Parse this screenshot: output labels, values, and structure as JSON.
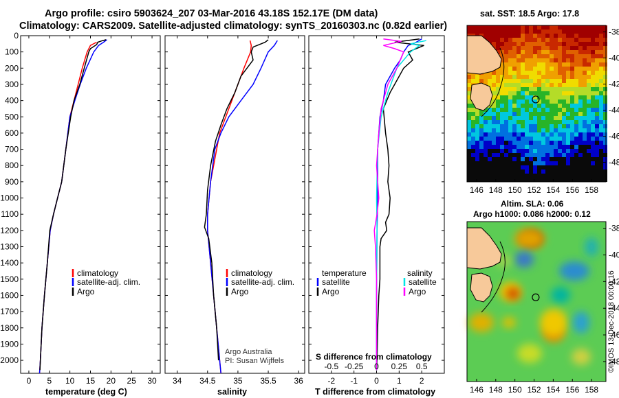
{
  "title": {
    "line1": "Argo profile: csiro 5903624_207 03-Mar-2016 43.18S 152.17E (DM data)",
    "line2": "Climatology: CARS2009. Satellite-adjusted climatology: synTS_20160303.nc (0.82d earlier)"
  },
  "chart_data": [
    {
      "type": "line",
      "panel": "temperature",
      "xlabel": "temperature (deg C)",
      "ylabel": "",
      "xlim": [
        -2,
        32
      ],
      "ylim": [
        2080,
        0
      ],
      "x_ticks": [
        "0",
        "5",
        "10",
        "15",
        "20",
        "25",
        "30"
      ],
      "y_ticks": [
        "0",
        "100",
        "200",
        "300",
        "400",
        "500",
        "600",
        "700",
        "800",
        "900",
        "1000",
        "1100",
        "1200",
        "1300",
        "1400",
        "1500",
        "1600",
        "1700",
        "1800",
        "1900",
        "2000"
      ],
      "legend": [
        "climatology",
        "satellite-adj. clim.",
        "Argo"
      ],
      "series": [
        {
          "name": "climatology",
          "color": "#ff0000",
          "points": [
            [
              16.5,
              40
            ],
            [
              15,
              60
            ],
            [
              14.2,
              100
            ],
            [
              13,
              200
            ],
            [
              12,
              300
            ],
            [
              11,
              400
            ],
            [
              10,
              500
            ],
            [
              9,
              700
            ],
            [
              8,
              900
            ],
            [
              7,
              1000
            ],
            [
              6,
              1100
            ],
            [
              5.2,
              1200
            ],
            [
              4.5,
              1400
            ],
            [
              3.8,
              1600
            ],
            [
              3.2,
              1800
            ],
            [
              2.8,
              2000
            ],
            [
              2.6,
              2080
            ]
          ]
        },
        {
          "name": "satellite-adj. clim.",
          "color": "#0000ff",
          "points": [
            [
              19,
              25
            ],
            [
              18.2,
              40
            ],
            [
              17,
              60
            ],
            [
              15.8,
              100
            ],
            [
              14,
              200
            ],
            [
              12.5,
              300
            ],
            [
              11.2,
              400
            ],
            [
              10,
              500
            ],
            [
              9,
              700
            ],
            [
              8,
              900
            ],
            [
              7,
              1000
            ],
            [
              6,
              1100
            ],
            [
              5.2,
              1200
            ],
            [
              4.5,
              1400
            ],
            [
              3.8,
              1600
            ],
            [
              3.2,
              1800
            ],
            [
              2.8,
              2000
            ],
            [
              2.6,
              2080
            ]
          ]
        },
        {
          "name": "Argo",
          "color": "#000000",
          "points": [
            [
              18.8,
              25
            ],
            [
              18,
              30
            ],
            [
              16.8,
              40
            ],
            [
              16.5,
              55
            ],
            [
              15,
              80
            ],
            [
              14.6,
              100
            ],
            [
              13.5,
              200
            ],
            [
              12.4,
              300
            ],
            [
              11,
              400
            ],
            [
              10.2,
              500
            ],
            [
              9,
              700
            ],
            [
              8,
              900
            ],
            [
              7,
              1000
            ],
            [
              6,
              1100
            ],
            [
              5.1,
              1200
            ],
            [
              4.5,
              1400
            ],
            [
              3.8,
              1600
            ],
            [
              3.2,
              1800
            ],
            [
              2.8,
              2000
            ],
            [
              2.7,
              2060
            ]
          ]
        }
      ]
    },
    {
      "type": "line",
      "panel": "salinity",
      "xlabel": "salinity",
      "ylabel": "",
      "xlim": [
        33.8,
        36.1
      ],
      "ylim": [
        2080,
        0
      ],
      "x_ticks": [
        "34",
        "34.5",
        "35",
        "35.5",
        "36"
      ],
      "legend": [
        "climatology",
        "satellite-adj. clim.",
        "Argo"
      ],
      "credit": [
        "Argo Australia",
        "PI: Susan Wijffels"
      ],
      "series": [
        {
          "name": "climatology",
          "color": "#ff0000",
          "points": [
            [
              35.2,
              30
            ],
            [
              35.22,
              60
            ],
            [
              35.21,
              100
            ],
            [
              35.1,
              200
            ],
            [
              35.0,
              300
            ],
            [
              34.9,
              400
            ],
            [
              34.8,
              500
            ],
            [
              34.7,
              600
            ],
            [
              34.65,
              700
            ],
            [
              34.55,
              900
            ],
            [
              34.5,
              1100
            ],
            [
              34.5,
              1200
            ],
            [
              34.55,
              1400
            ],
            [
              34.6,
              1600
            ],
            [
              34.65,
              1800
            ],
            [
              34.7,
              2000
            ],
            [
              34.72,
              2080
            ]
          ]
        },
        {
          "name": "satellite-adj. clim.",
          "color": "#0000ff",
          "points": [
            [
              35.65,
              30
            ],
            [
              35.6,
              60
            ],
            [
              35.5,
              100
            ],
            [
              35.38,
              200
            ],
            [
              35.25,
              300
            ],
            [
              35.05,
              400
            ],
            [
              34.85,
              500
            ],
            [
              34.72,
              600
            ],
            [
              34.62,
              700
            ],
            [
              34.55,
              900
            ],
            [
              34.5,
              1100
            ],
            [
              34.5,
              1200
            ],
            [
              34.55,
              1400
            ],
            [
              34.6,
              1600
            ],
            [
              34.65,
              1800
            ],
            [
              34.7,
              2000
            ],
            [
              34.72,
              2080
            ]
          ]
        },
        {
          "name": "Argo",
          "color": "#000000",
          "points": [
            [
              35.5,
              25
            ],
            [
              35.45,
              40
            ],
            [
              35.25,
              70
            ],
            [
              35.22,
              100
            ],
            [
              35.25,
              150
            ],
            [
              35.05,
              250
            ],
            [
              34.95,
              350
            ],
            [
              34.82,
              450
            ],
            [
              34.72,
              550
            ],
            [
              34.63,
              650
            ],
            [
              34.55,
              800
            ],
            [
              34.5,
              950
            ],
            [
              34.48,
              1100
            ],
            [
              34.45,
              1180
            ],
            [
              34.52,
              1250
            ],
            [
              34.57,
              1400
            ],
            [
              34.6,
              1600
            ],
            [
              34.65,
              1800
            ],
            [
              34.68,
              2000
            ]
          ]
        }
      ]
    },
    {
      "type": "line",
      "panel": "difference",
      "xlabel": "T difference from climatology",
      "secondary_xlabel": "S difference from climatology",
      "xlim": [
        -3,
        3
      ],
      "ylim": [
        2080,
        0
      ],
      "x_ticks": [
        "-2",
        "-1",
        "0",
        "1",
        "2"
      ],
      "secondary_x_ticks": [
        "-0.5",
        "-0.25",
        "0",
        "0.25",
        "0.5"
      ],
      "legend_temperature_title": "temperature",
      "legend_salinity_title": "salinity",
      "legend_temperature": [
        "satellite",
        "Argo"
      ],
      "legend_salinity": [
        "satellite",
        "Argo"
      ],
      "series": [
        {
          "name": "T satellite",
          "color": "#0000ff",
          "points": [
            [
              2.0,
              20
            ],
            [
              1.7,
              45
            ],
            [
              1.4,
              60
            ],
            [
              1.2,
              100
            ],
            [
              1.05,
              150
            ],
            [
              0.8,
              200
            ],
            [
              0.4,
              300
            ],
            [
              0.3,
              400
            ],
            [
              0.15,
              500
            ],
            [
              0.05,
              700
            ],
            [
              0.05,
              1000
            ],
            [
              0.02,
              1200
            ],
            [
              0.0,
              1600
            ],
            [
              0.0,
              2060
            ]
          ]
        },
        {
          "name": "T Argo",
          "color": "#000000",
          "points": [
            [
              1.9,
              20
            ],
            [
              0.8,
              40
            ],
            [
              2.1,
              60
            ],
            [
              1.4,
              100
            ],
            [
              1.6,
              150
            ],
            [
              1.2,
              200
            ],
            [
              0.8,
              300
            ],
            [
              0.6,
              350
            ],
            [
              0.3,
              450
            ],
            [
              0.4,
              600
            ],
            [
              0.5,
              700
            ],
            [
              0.55,
              800
            ],
            [
              0.5,
              900
            ],
            [
              0.6,
              1000
            ],
            [
              0.55,
              1100
            ],
            [
              0.4,
              1150
            ],
            [
              0.45,
              1200
            ],
            [
              0.2,
              1250
            ],
            [
              0.15,
              1300
            ],
            [
              0.15,
              1500
            ],
            [
              0.1,
              1600
            ],
            [
              0.05,
              1800
            ],
            [
              0.02,
              2000
            ],
            [
              0.0,
              2060
            ]
          ]
        },
        {
          "name": "S satellite",
          "color": "#00e5e5",
          "points": [
            [
              2.2,
              30
            ],
            [
              1.5,
              50
            ],
            [
              1.9,
              60
            ],
            [
              1.5,
              100
            ],
            [
              0.9,
              200
            ],
            [
              0.5,
              350
            ],
            [
              0.2,
              500
            ],
            [
              0.05,
              700
            ],
            [
              0.0,
              1000
            ],
            [
              0.02,
              1200
            ],
            [
              0.0,
              1600
            ],
            [
              0.0,
              2060
            ]
          ]
        },
        {
          "name": "S Argo",
          "color": "#ff00ff",
          "points": [
            [
              0.3,
              20
            ],
            [
              1.1,
              35
            ],
            [
              0.3,
              60
            ],
            [
              0.8,
              80
            ],
            [
              1.2,
              100
            ],
            [
              0.9,
              200
            ],
            [
              0.5,
              300
            ],
            [
              0.2,
              450
            ],
            [
              0.1,
              600
            ],
            [
              0.0,
              800
            ],
            [
              0.1,
              1000
            ],
            [
              0.02,
              1100
            ],
            [
              -0.1,
              1200
            ],
            [
              -0.05,
              1300
            ],
            [
              0.0,
              1500
            ],
            [
              0.0,
              2060
            ]
          ]
        }
      ]
    }
  ],
  "maps": {
    "sst": {
      "title": "sat. SST: 18.5 Argo: 17.8",
      "lon_ticks": [
        "146",
        "148",
        "150",
        "152",
        "154",
        "156",
        "158"
      ],
      "lat_ticks": [
        "-38",
        "-40",
        "-42",
        "-44",
        "-46",
        "-48"
      ],
      "lon_range": [
        145,
        159.5
      ],
      "lat_range": [
        -37.5,
        -49.5
      ],
      "float_position": {
        "lon": 152.17,
        "lat": -43.18
      }
    },
    "sla": {
      "title_line1": "Altim. SLA: 0.06",
      "title_line2": "Argo h1000: 0.086 h2000: 0.12",
      "lon_ticks": [
        "146",
        "148",
        "150",
        "152",
        "154",
        "156",
        "158"
      ],
      "lat_ticks": [
        "-38",
        "-40",
        "-42",
        "-44",
        "-46",
        "-48"
      ],
      "lon_range": [
        145,
        159.5
      ],
      "lat_range": [
        -37.5,
        -49.5
      ],
      "float_position": {
        "lon": 152.17,
        "lat": -43.18
      }
    }
  },
  "side_label": "©IMOS 13-Dec-2018 00:00:16",
  "colors": {
    "clim": "#ff0000",
    "sat": "#0000ff",
    "argo": "#000000",
    "sat_s": "#00e5e5",
    "argo_s": "#ff00ff"
  }
}
